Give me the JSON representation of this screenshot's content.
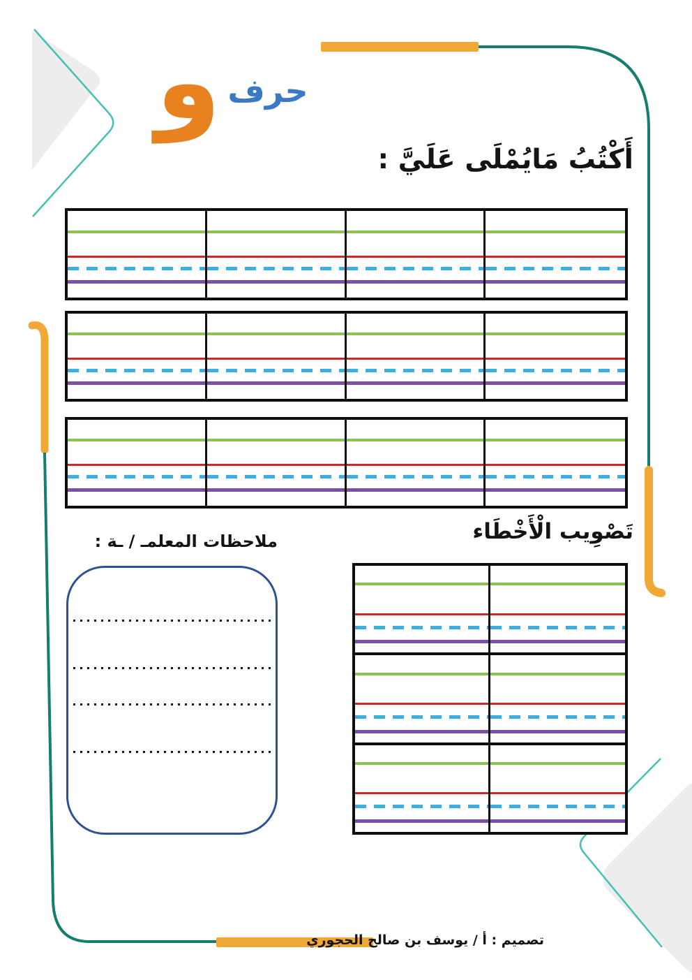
{
  "header": {
    "letter": "و",
    "letter_word": "حرف"
  },
  "sections": {
    "dictation": {
      "title": "أَكْتُبُ مَايُمْلَى عَلَيَّ :"
    },
    "correction": {
      "title": "تَصْوِيب الْأَخْطَاء"
    },
    "notes": {
      "label": "ملاحظات المعلمـ / ـة :"
    }
  },
  "footer": {
    "credit": "تصميم : أ / يوسف بن صالح الحجوري"
  },
  "dictation_grid": {
    "tables": 3,
    "columns": 4,
    "rows_per_table": 1
  },
  "correction_grid": {
    "rows": 3,
    "columns": 2
  },
  "notes_box": {
    "dotted_lines": 4
  },
  "ruled_line_colors_order": [
    "green",
    "red",
    "dashed-blue",
    "purple"
  ],
  "colors": {
    "accent_orange": "#F2A837",
    "letter_orange": "#E8821E",
    "border_teal": "#157E6F",
    "light_teal": "#45C0B7",
    "word_blue": "#3C79C4",
    "line_green": "#8DC153",
    "line_red": "#C92A2A",
    "line_dashed_blue": "#3AAFE0",
    "line_purple": "#7B4FA6",
    "notes_border": "#2E5193",
    "table_border": "#0D0D0D",
    "shape_gray": "#EDEDED"
  }
}
